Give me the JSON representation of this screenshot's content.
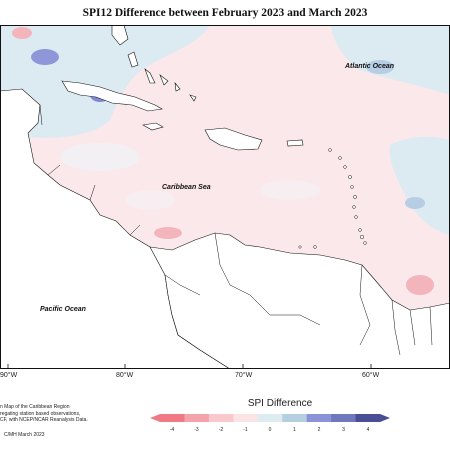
{
  "title": "SPI12 Difference between February 2023 and March 2023",
  "labels": {
    "atlantic": "Atlantic Ocean",
    "caribbean": "Caribbean Sea",
    "pacific": "Pacific Ocean"
  },
  "longitudes": [
    "90°W",
    "80°W",
    "70°W",
    "60°W"
  ],
  "credits": {
    "line1": "n Map of the Caribbean Region",
    "line2": "regating station based observations,",
    "line3": "CF, with NCEP/NCAR Reanalysis Data."
  },
  "copyright": "C/MH March 2023",
  "legend": {
    "title": "SPI Difference",
    "ticks": [
      "-4",
      "-3",
      "-2",
      "-1",
      "0",
      "1",
      "2",
      "3",
      "4"
    ],
    "colors": [
      "#f07a84",
      "#f5a3aa",
      "#f8c8cd",
      "#fbe3e6",
      "#dcecf0",
      "#b4cfe0",
      "#8a93d8",
      "#6f78bd",
      "#4a4f95"
    ]
  }
}
